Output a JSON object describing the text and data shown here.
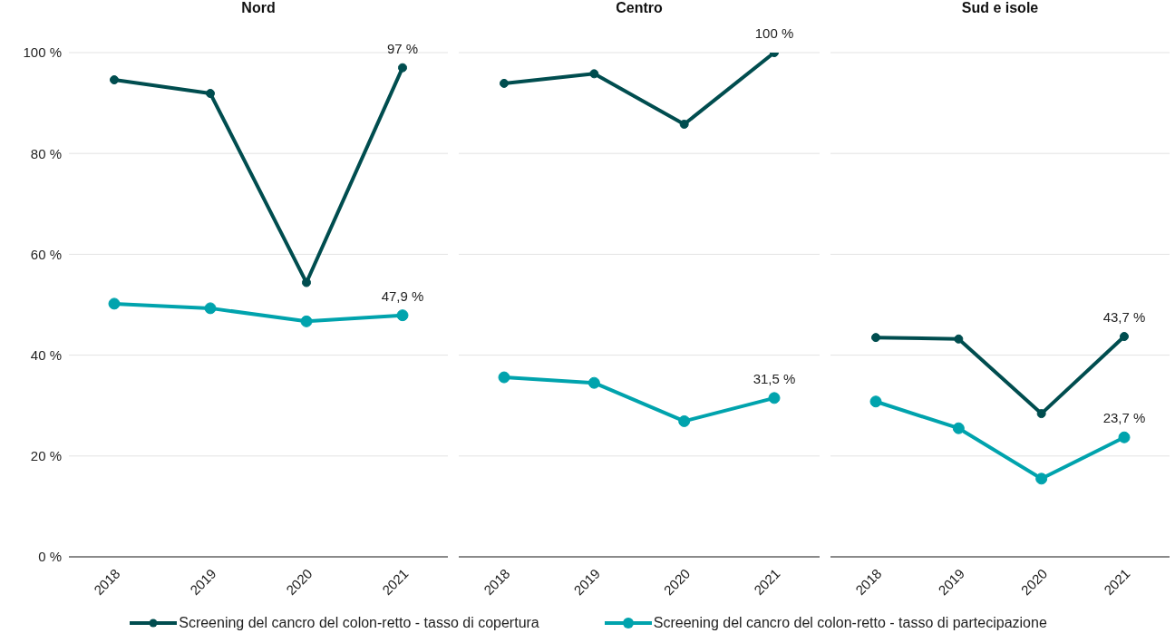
{
  "chart_data": [
    {
      "type": "line",
      "title": "Nord",
      "categories": [
        "2018",
        "2019",
        "2020",
        "2021"
      ],
      "ylim": [
        0,
        100
      ],
      "yticks": [
        {
          "value": 0,
          "label": "0 %"
        },
        {
          "value": 20,
          "label": "20 %"
        },
        {
          "value": 40,
          "label": "40 %"
        },
        {
          "value": 60,
          "label": "60 %"
        },
        {
          "value": 80,
          "label": "80 %"
        },
        {
          "value": 100,
          "label": "100 %"
        }
      ],
      "grid": "y",
      "legend": "bottom",
      "marker": "circle",
      "line_style": "solid",
      "series": [
        {
          "name": "Screening del cancro del colon-retto - tasso di copertura",
          "color": "#004d4f",
          "values": [
            94.6,
            91.9,
            54.4,
            97
          ],
          "value_labels": [
            null,
            null,
            null,
            "97 %"
          ]
        },
        {
          "name": "Screening del cancro del colon-retto - tasso di partecipazione",
          "color": "#00a3ad",
          "values": [
            50.2,
            49.3,
            46.7,
            47.9
          ],
          "value_labels": [
            null,
            null,
            null,
            "47,9 %"
          ]
        }
      ]
    },
    {
      "type": "line",
      "title": "Centro",
      "categories": [
        "2018",
        "2019",
        "2020",
        "2021"
      ],
      "ylim": [
        0,
        100
      ],
      "yticks": [
        {
          "value": 0,
          "label": null
        },
        {
          "value": 20,
          "label": null
        },
        {
          "value": 40,
          "label": null
        },
        {
          "value": 60,
          "label": null
        },
        {
          "value": 80,
          "label": null
        },
        {
          "value": 100,
          "label": null
        }
      ],
      "tick_labels": "x",
      "grid": "y",
      "marker": "circle",
      "line_style": "solid",
      "series": [
        {
          "color": "#004d4f",
          "values": [
            93.9,
            95.8,
            85.8,
            100
          ],
          "value_labels": [
            null,
            null,
            null,
            "100 %"
          ]
        },
        {
          "color": "#00a3ad",
          "values": [
            35.6,
            34.5,
            26.9,
            31.5
          ],
          "value_labels": [
            null,
            null,
            null,
            "31,5 %"
          ]
        }
      ]
    },
    {
      "type": "line",
      "title": "Sud e isole",
      "categories": [
        "2018",
        "2019",
        "2020",
        "2021"
      ],
      "ylim": [
        0,
        100
      ],
      "yticks": [
        {
          "value": 0,
          "label": null
        },
        {
          "value": 20,
          "label": null
        },
        {
          "value": 40,
          "label": null
        },
        {
          "value": 60,
          "label": null
        },
        {
          "value": 80,
          "label": null
        },
        {
          "value": 100,
          "label": null
        }
      ],
      "tick_labels": "x",
      "grid": "y",
      "marker": "circle",
      "line_style": "solid",
      "series": [
        {
          "color": "#004d4f",
          "values": [
            43.5,
            43.2,
            28.4,
            43.7
          ],
          "value_labels": [
            null,
            null,
            null,
            "43,7 %"
          ]
        },
        {
          "color": "#00a3ad",
          "values": [
            30.8,
            25.5,
            15.5,
            23.7
          ],
          "value_labels": [
            null,
            null,
            null,
            "23,7 %"
          ]
        }
      ]
    }
  ]
}
